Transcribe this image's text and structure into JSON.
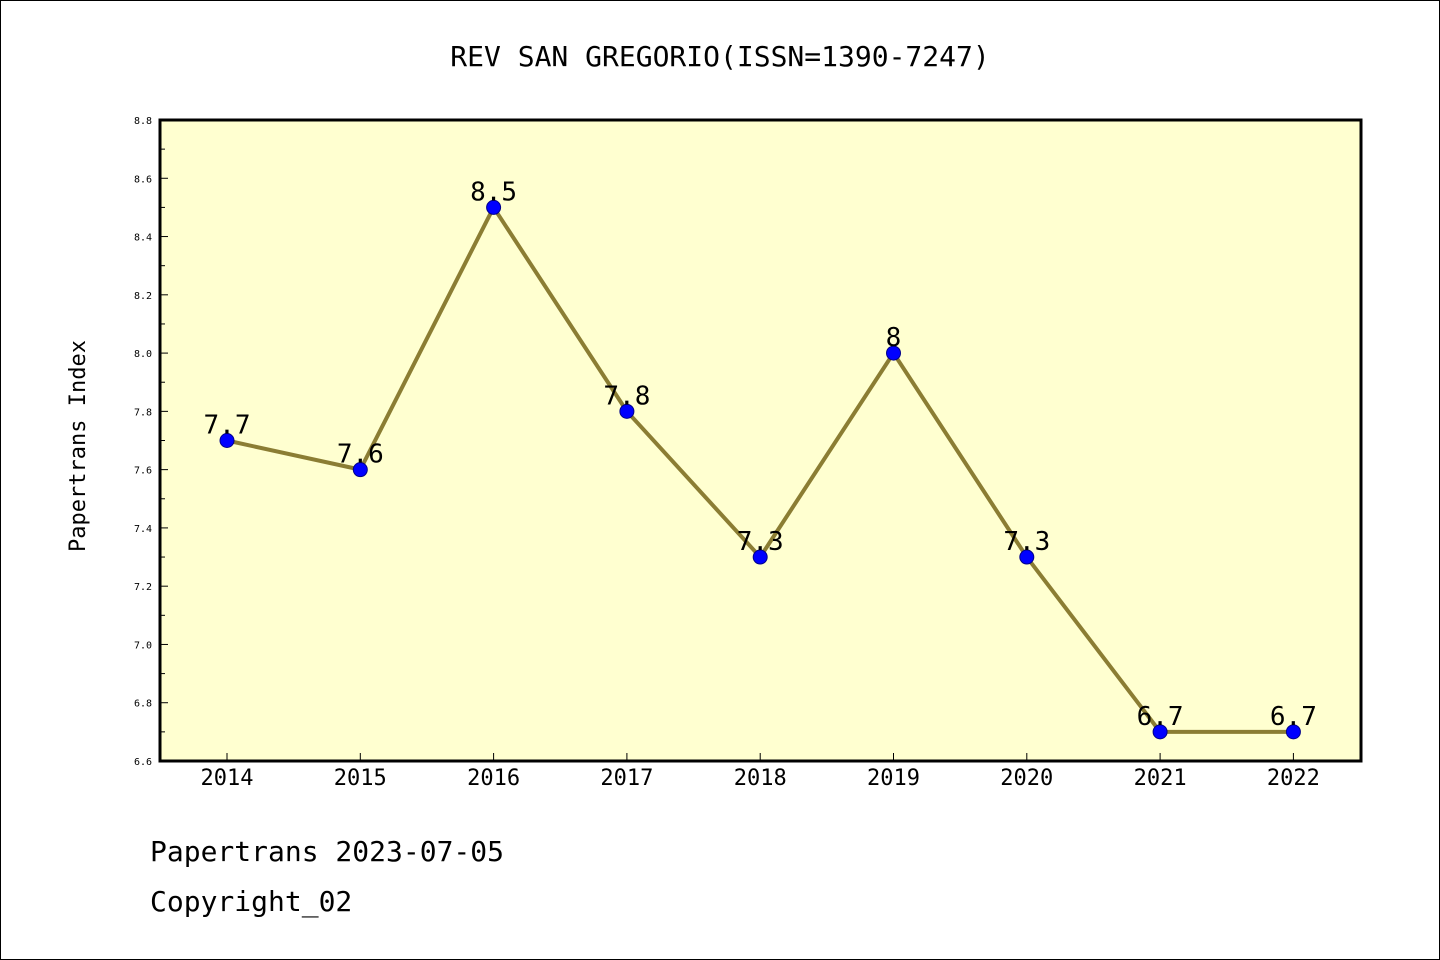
{
  "chart_data": {
    "type": "line",
    "title": "REV SAN GREGORIO(ISSN=1390-7247)",
    "ylabel": "Papertrans Index",
    "xlabel": "",
    "categories": [
      "2014",
      "2015",
      "2016",
      "2017",
      "2018",
      "2019",
      "2020",
      "2021",
      "2022"
    ],
    "series": [
      {
        "values": [
          7.7,
          7.6,
          8.5,
          7.8,
          7.3,
          8.0,
          7.3,
          6.7,
          6.7
        ],
        "data_labels": [
          "7.7",
          "7.6",
          "8.5",
          "7.8",
          "7.3",
          "8",
          "7.3",
          "6.7",
          "6.7"
        ],
        "line_color": "#8b7d33",
        "marker_color": "#0000ff"
      }
    ],
    "ylim": [
      6.6,
      8.8
    ],
    "yticks": [
      "6.6",
      "6.8",
      "7.0",
      "7.2",
      "7.4",
      "7.6",
      "7.8",
      "8.0",
      "8.2",
      "8.4",
      "8.6",
      "8.8"
    ],
    "grid": false,
    "plot_background": "#ffffd0"
  },
  "footer": {
    "source": "Papertrans 2023-07-05",
    "copyright": "Copyright_02"
  }
}
